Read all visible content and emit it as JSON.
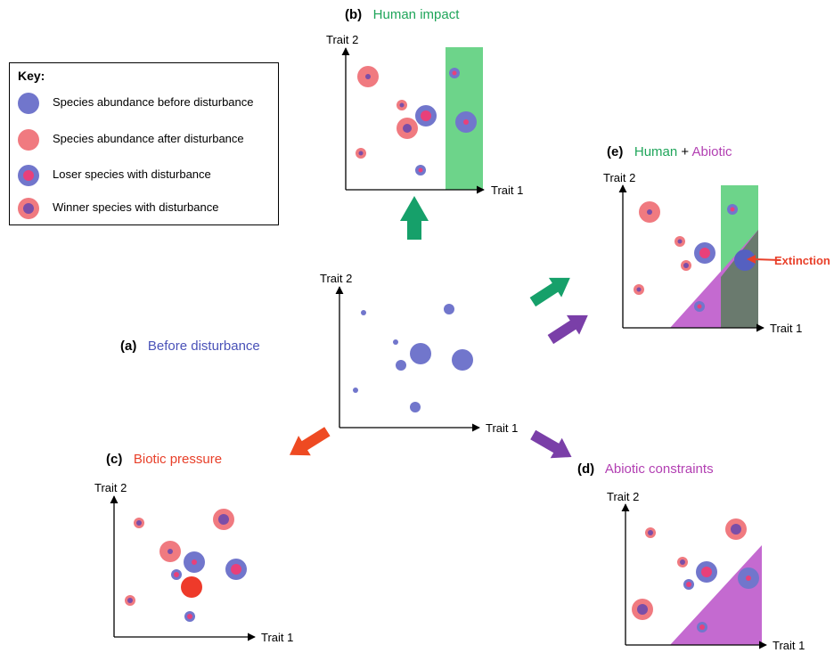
{
  "key": {
    "title": "Key:",
    "items": [
      {
        "label": "Species abundance before disturbance",
        "type": "before"
      },
      {
        "label": "Species abundance after disturbance",
        "type": "after"
      },
      {
        "label": "Loser species with disturbance",
        "type": "loser"
      },
      {
        "label": "Winner species with disturbance",
        "type": "winner"
      }
    ]
  },
  "colors": {
    "blue": "#7176cc",
    "pink": "#f07a80",
    "magenta": "#e8407a",
    "purple_dot": "#7a4ea8",
    "green_zone": "#6dd48a",
    "purple_zone": "#c46ad0",
    "overlap_zone": "#6a7a6e",
    "extinction_red": "#e8402a",
    "arrow_green": "#16a06a",
    "arrow_purple": "#7a3fa8",
    "arrow_red": "#ee4a22"
  },
  "axes": {
    "x": "Trait 1",
    "y": "Trait 2"
  },
  "panels": [
    {
      "id": "a",
      "letter": "(a)",
      "title": "Before disturbance"
    },
    {
      "id": "b",
      "letter": "(b)",
      "title": "Human impact"
    },
    {
      "id": "c",
      "letter": "(c)",
      "title": "Biotic pressure"
    },
    {
      "id": "d",
      "letter": "(d)",
      "title": "Abiotic constraints"
    },
    {
      "id": "e",
      "letter": "(e)",
      "title_part1": "Human",
      "title_plus": " + ",
      "title_part2": "Abiotic"
    }
  ],
  "extinction_label": "Extinction"
}
